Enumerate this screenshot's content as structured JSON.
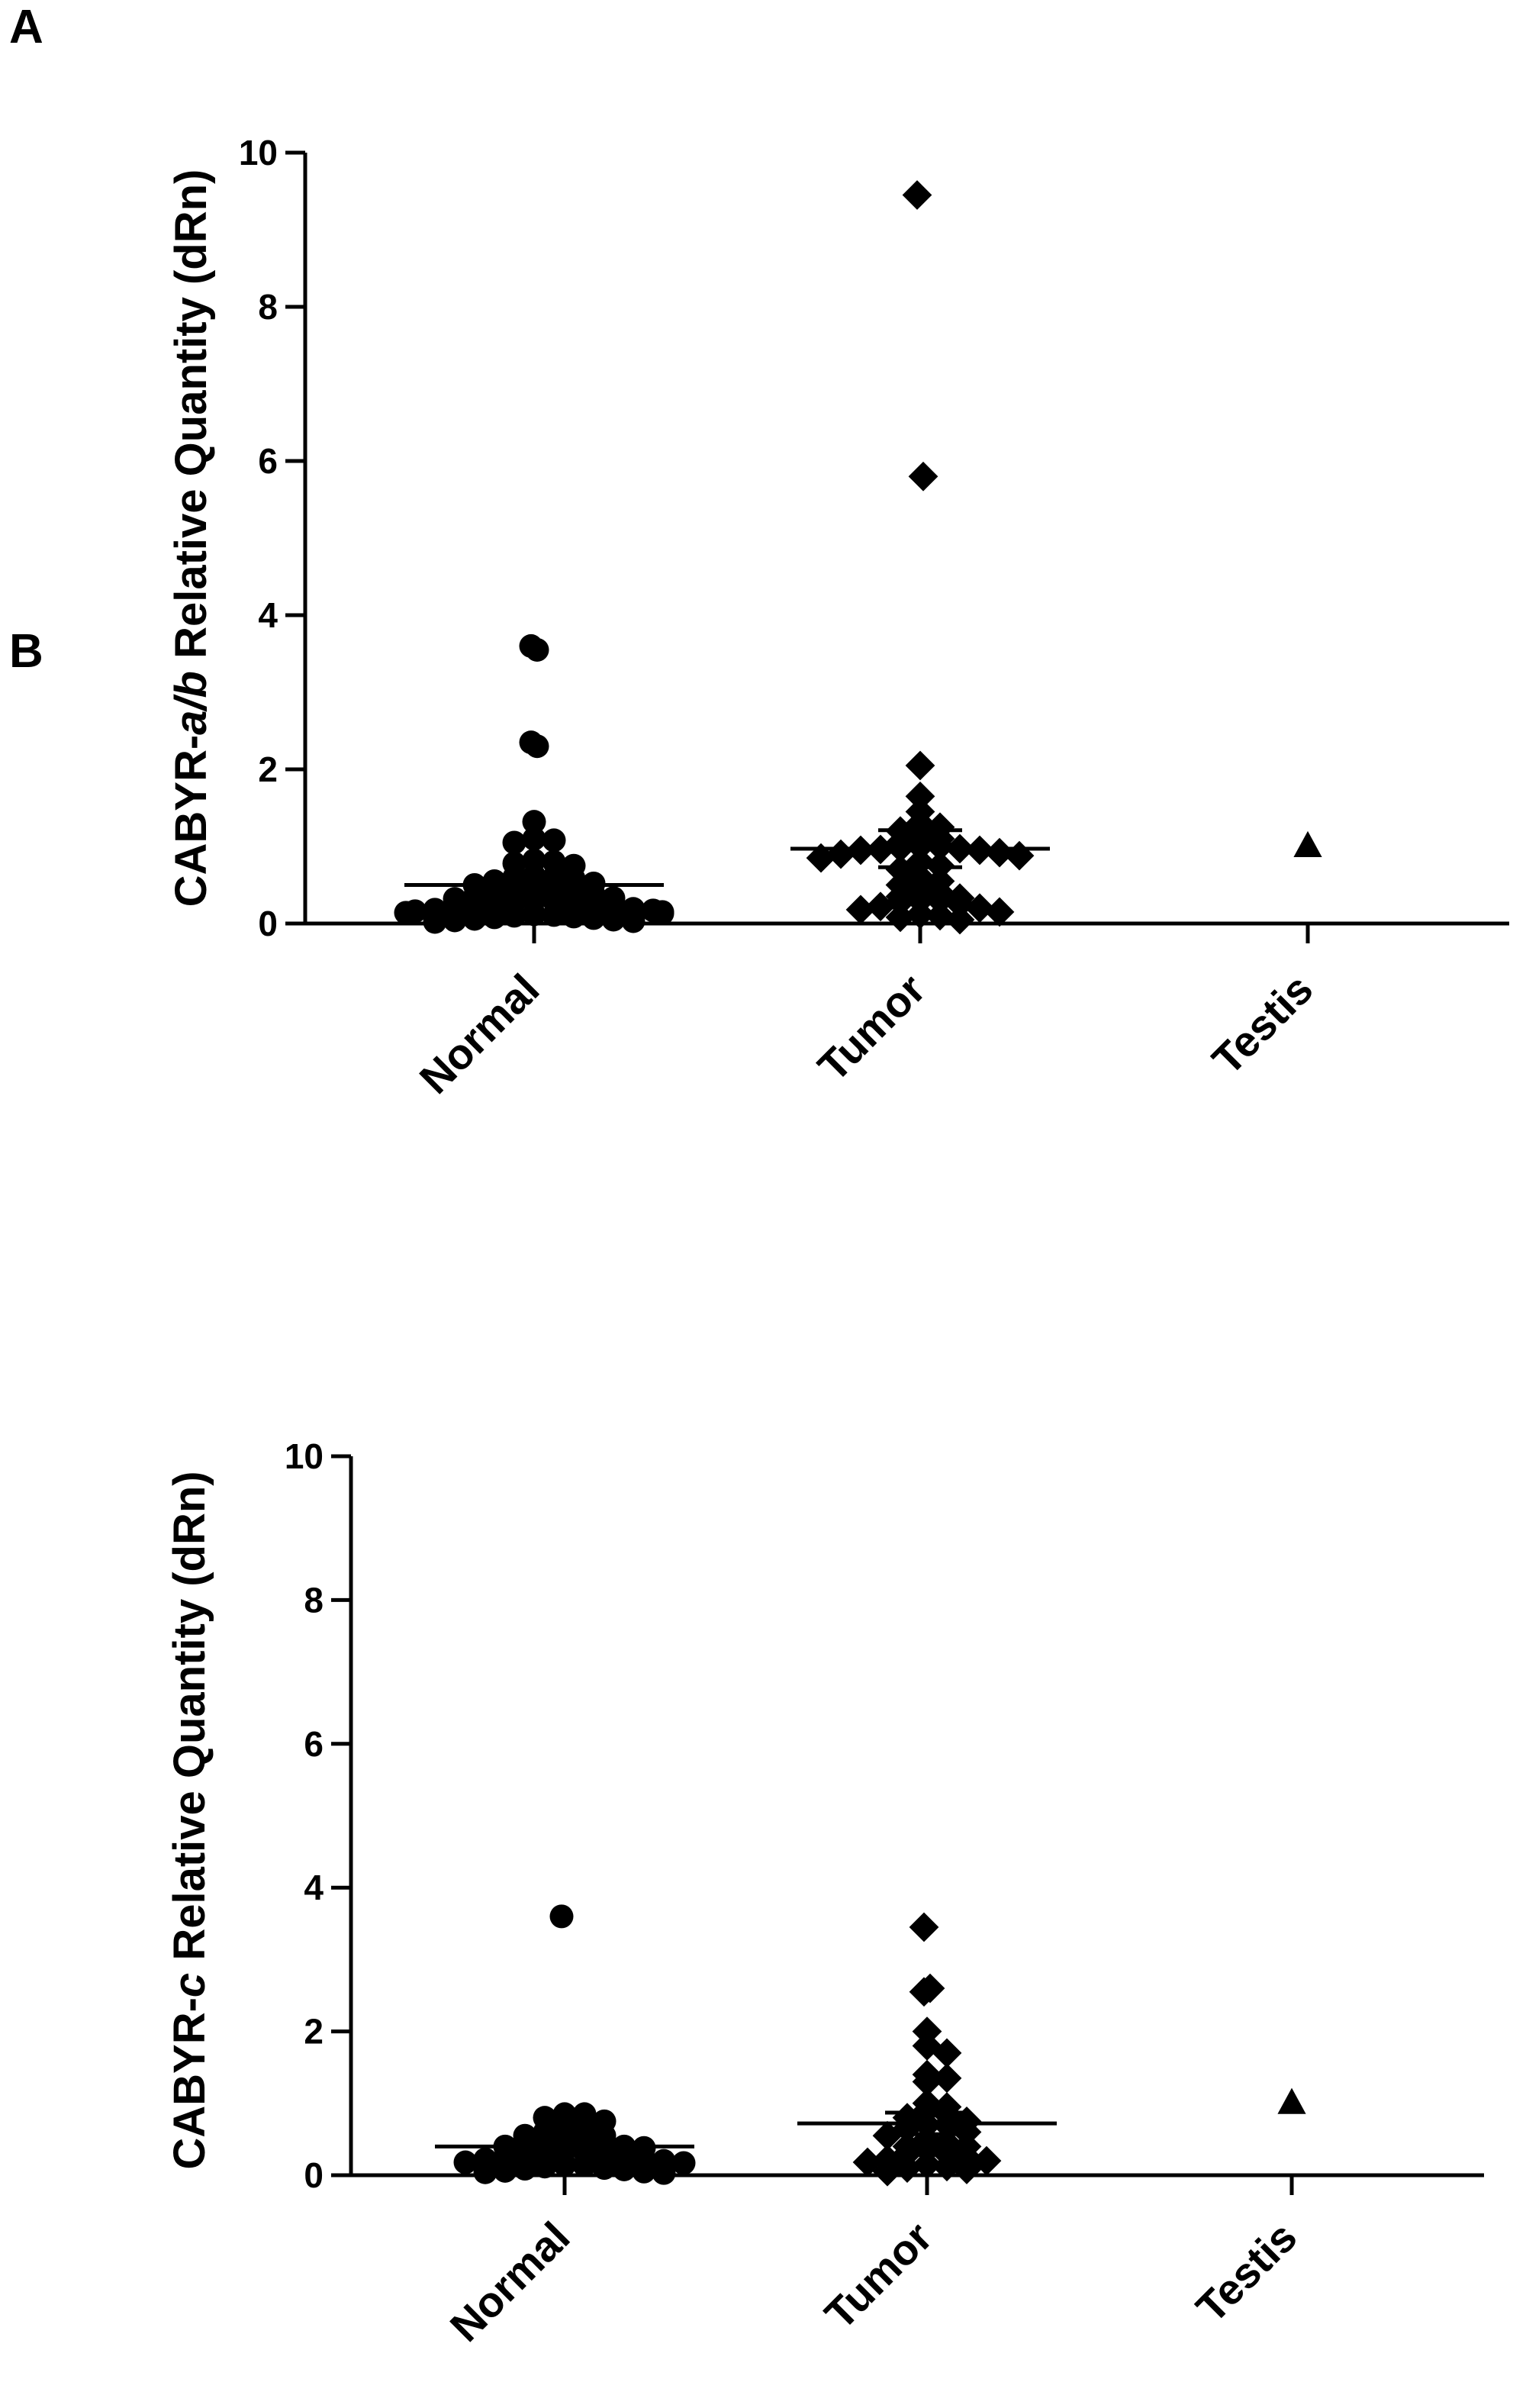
{
  "panels": [
    {
      "letter": "A"
    },
    {
      "letter": "B"
    }
  ],
  "chart_data": [
    {
      "type": "scatter",
      "title": "",
      "ylabel_parts": [
        "CABYR-",
        "a/b",
        " Relative Quantity (dRn)"
      ],
      "xlabel": "",
      "categories": [
        "Normal",
        "Tumor",
        "Testis"
      ],
      "ylim": [
        0,
        10
      ],
      "yticks": [
        "0",
        "2",
        "4",
        "6",
        "8",
        "10"
      ],
      "grid": false,
      "markers": [
        "circle",
        "diamond",
        "triangle"
      ],
      "means": [
        0.5,
        0.97,
        null
      ],
      "sem": [
        0.1,
        0.24,
        null
      ],
      "series": [
        {
          "category": "Normal",
          "values": [
            3.55,
            3.6,
            2.35,
            2.3,
            1.32,
            1.1,
            1.08,
            1.05,
            0.82,
            0.8,
            0.78,
            0.75,
            0.62,
            0.6,
            0.6,
            0.58,
            0.55,
            0.52,
            0.5,
            0.48,
            0.45,
            0.42,
            0.4,
            0.38,
            0.38,
            0.35,
            0.33,
            0.32,
            0.3,
            0.3,
            0.28,
            0.26,
            0.25,
            0.24,
            0.22,
            0.21,
            0.2,
            0.19,
            0.18,
            0.17,
            0.16,
            0.15,
            0.14,
            0.13,
            0.12,
            0.11,
            0.1,
            0.09,
            0.08,
            0.07,
            0.06,
            0.05,
            0.04,
            0.03,
            0.02
          ]
        },
        {
          "category": "Tumor",
          "values": [
            9.45,
            5.8,
            2.05,
            1.65,
            1.45,
            1.3,
            1.25,
            1.2,
            1.15,
            1.1,
            1.05,
            1.0,
            1.0,
            0.98,
            0.97,
            0.96,
            0.95,
            0.95,
            0.92,
            0.9,
            0.88,
            0.85,
            0.8,
            0.75,
            0.7,
            0.6,
            0.55,
            0.5,
            0.45,
            0.4,
            0.35,
            0.33,
            0.3,
            0.3,
            0.28,
            0.25,
            0.22,
            0.2,
            0.18,
            0.15,
            0.12,
            0.1,
            0.08,
            0.05
          ]
        },
        {
          "category": "Testis",
          "values": [
            1.0
          ]
        }
      ]
    },
    {
      "type": "scatter",
      "title": "",
      "ylabel_parts": [
        "CABYR-",
        "c",
        " Relative Quantity (dRn)"
      ],
      "xlabel": "",
      "categories": [
        "Normal",
        "Tumor",
        "Testis"
      ],
      "ylim": [
        0,
        10
      ],
      "yticks": [
        "0",
        "2",
        "4",
        "6",
        "8",
        "10"
      ],
      "grid": false,
      "markers": [
        "circle",
        "diamond",
        "triangle"
      ],
      "means": [
        0.4,
        0.72,
        null
      ],
      "sem": [
        0.08,
        0.15,
        null
      ],
      "series": [
        {
          "category": "Normal",
          "values": [
            3.6,
            0.85,
            0.85,
            0.8,
            0.75,
            0.7,
            0.65,
            0.6,
            0.55,
            0.55,
            0.5,
            0.5,
            0.48,
            0.45,
            0.42,
            0.4,
            0.4,
            0.38,
            0.35,
            0.33,
            0.3,
            0.3,
            0.28,
            0.26,
            0.25,
            0.23,
            0.22,
            0.2,
            0.18,
            0.17,
            0.15,
            0.14,
            0.12,
            0.1,
            0.09,
            0.08,
            0.06,
            0.05,
            0.04,
            0.03
          ]
        },
        {
          "category": "Tumor",
          "values": [
            3.45,
            2.6,
            2.55,
            2.0,
            1.8,
            1.7,
            1.4,
            1.35,
            1.3,
            1.0,
            0.95,
            0.9,
            0.85,
            0.8,
            0.75,
            0.7,
            0.7,
            0.65,
            0.6,
            0.55,
            0.5,
            0.45,
            0.4,
            0.4,
            0.35,
            0.3,
            0.3,
            0.25,
            0.22,
            0.2,
            0.18,
            0.15,
            0.12,
            0.1,
            0.08,
            0.05
          ]
        },
        {
          "category": "Testis",
          "values": [
            1.0
          ]
        }
      ]
    }
  ]
}
